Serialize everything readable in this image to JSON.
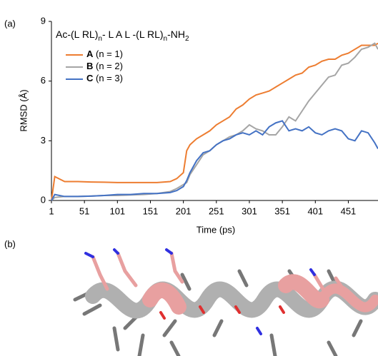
{
  "panel_labels": [
    "(a)",
    "(b)"
  ],
  "chart_data": {
    "type": "line",
    "legend_title_parts": [
      {
        "text": "Ac-(L RL)"
      },
      {
        "text": "n",
        "sub": true
      },
      {
        "text": "- L A L -(L RL)"
      },
      {
        "text": "n",
        "sub": true
      },
      {
        "text": "-NH"
      },
      {
        "text": "2",
        "sub": true
      }
    ],
    "x_label": "Time (ps)",
    "y_label": "RMSD (Å)",
    "x": [
      1,
      6,
      21,
      41,
      61,
      81,
      101,
      121,
      141,
      161,
      181,
      191,
      201,
      206,
      211,
      221,
      231,
      241,
      251,
      261,
      271,
      281,
      291,
      301,
      311,
      321,
      331,
      341,
      351,
      361,
      371,
      381,
      391,
      401,
      411,
      421,
      431,
      441,
      451,
      461,
      471,
      481,
      491,
      496
    ],
    "series": [
      {
        "name": "A",
        "label": "(n = 1)",
        "color": "#ed7d31",
        "values": [
          0,
          1.2,
          0.95,
          0.95,
          0.93,
          0.92,
          0.9,
          0.9,
          0.9,
          0.9,
          0.95,
          1.1,
          1.4,
          2.5,
          2.8,
          3.1,
          3.3,
          3.5,
          3.8,
          4.0,
          4.2,
          4.6,
          4.8,
          5.1,
          5.3,
          5.4,
          5.5,
          5.7,
          5.9,
          6.1,
          6.3,
          6.4,
          6.7,
          6.8,
          7.0,
          7.1,
          7.1,
          7.3,
          7.4,
          7.6,
          7.8,
          7.8,
          7.8,
          7.9
        ]
      },
      {
        "name": "B",
        "label": "(n = 2)",
        "color": "#a5a5a5",
        "values": [
          0,
          0.15,
          0.2,
          0.2,
          0.22,
          0.25,
          0.25,
          0.28,
          0.3,
          0.35,
          0.45,
          0.6,
          0.8,
          0.9,
          1.3,
          1.8,
          2.3,
          2.5,
          2.8,
          3.0,
          3.2,
          3.3,
          3.5,
          3.8,
          3.6,
          3.5,
          3.3,
          3.3,
          3.7,
          4.2,
          4.0,
          4.5,
          5.0,
          5.4,
          5.8,
          6.2,
          6.3,
          6.8,
          6.9,
          7.2,
          7.6,
          7.7,
          7.9,
          7.6
        ]
      },
      {
        "name": "C",
        "label": "(n = 3)",
        "color": "#4472c4",
        "values": [
          0,
          0.3,
          0.2,
          0.2,
          0.22,
          0.25,
          0.3,
          0.3,
          0.35,
          0.35,
          0.4,
          0.5,
          0.7,
          1.0,
          1.4,
          2.0,
          2.4,
          2.5,
          2.8,
          3.0,
          3.1,
          3.3,
          3.4,
          3.3,
          3.5,
          3.3,
          3.7,
          3.9,
          4.0,
          3.5,
          3.6,
          3.5,
          3.7,
          3.4,
          3.3,
          3.5,
          3.6,
          3.5,
          3.1,
          3.0,
          3.5,
          3.4,
          2.9,
          2.6
        ]
      }
    ],
    "xlim": [
      1,
      496
    ],
    "xticks": [
      1,
      51,
      101,
      151,
      201,
      251,
      301,
      351,
      401,
      451
    ],
    "ylim": [
      0,
      9
    ],
    "yticks": [
      0,
      3,
      6,
      9
    ],
    "grid": false
  }
}
